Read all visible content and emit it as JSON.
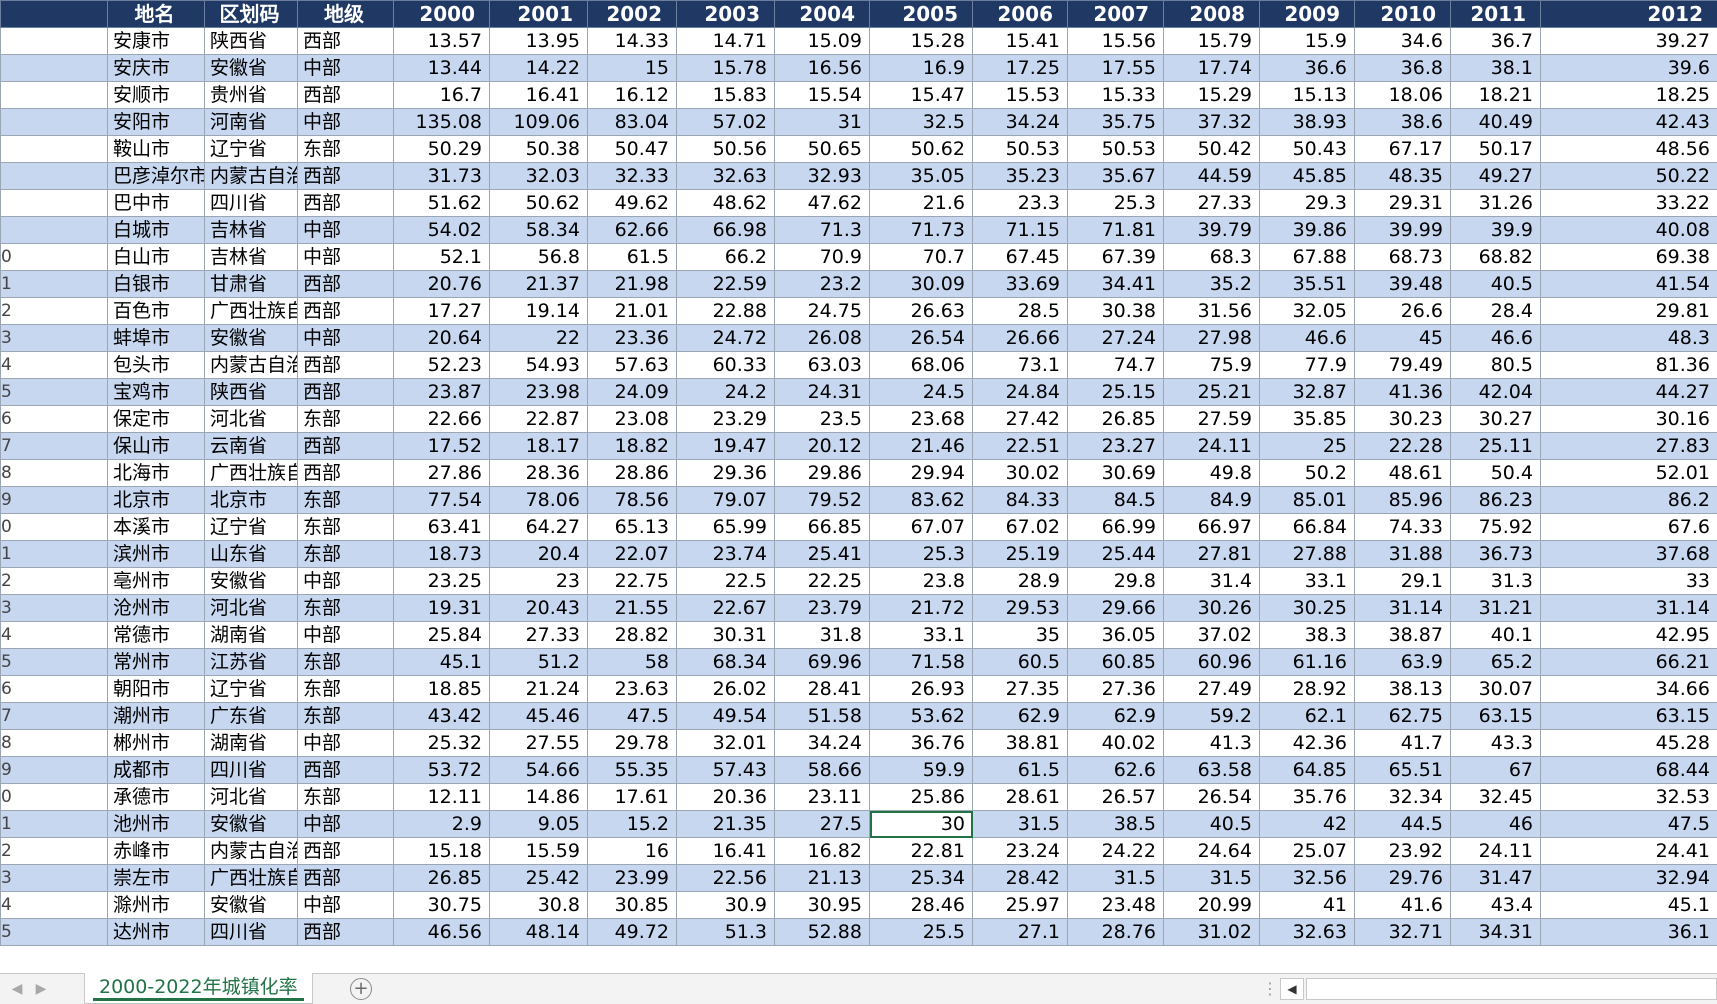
{
  "sheet": {
    "headers": [
      "地名",
      "区划码",
      "地级",
      "2000",
      "2001",
      "2002",
      "2003",
      "2004",
      "2005",
      "2006",
      "2007",
      "2008",
      "2009",
      "2010",
      "2011",
      "2012"
    ],
    "row_numbers": [
      "",
      "",
      "",
      "",
      "",
      "",
      "",
      "",
      "0",
      "1",
      "2",
      "3",
      "4",
      "5",
      "6",
      "7",
      "8",
      "9",
      "0",
      "1",
      "2",
      "3",
      "4",
      "5",
      "6",
      "7",
      "8",
      "9",
      "0",
      "1",
      "2",
      "3",
      "4",
      "5"
    ],
    "rows": [
      [
        "安康市",
        "陕西省",
        "西部",
        "13.57",
        "13.95",
        "14.33",
        "14.71",
        "15.09",
        "15.28",
        "15.41",
        "15.56",
        "15.79",
        "15.9",
        "34.6",
        "36.7",
        "39.27"
      ],
      [
        "安庆市",
        "安徽省",
        "中部",
        "13.44",
        "14.22",
        "15",
        "15.78",
        "16.56",
        "16.9",
        "17.25",
        "17.55",
        "17.74",
        "36.6",
        "36.8",
        "38.1",
        "39.6"
      ],
      [
        "安顺市",
        "贵州省",
        "西部",
        "16.7",
        "16.41",
        "16.12",
        "15.83",
        "15.54",
        "15.47",
        "15.53",
        "15.33",
        "15.29",
        "15.13",
        "18.06",
        "18.21",
        "18.25"
      ],
      [
        "安阳市",
        "河南省",
        "中部",
        "135.08",
        "109.06",
        "83.04",
        "57.02",
        "31",
        "32.5",
        "34.24",
        "35.75",
        "37.32",
        "38.93",
        "38.6",
        "40.49",
        "42.43"
      ],
      [
        "鞍山市",
        "辽宁省",
        "东部",
        "50.29",
        "50.38",
        "50.47",
        "50.56",
        "50.65",
        "50.62",
        "50.53",
        "50.53",
        "50.42",
        "50.43",
        "67.17",
        "50.17",
        "48.56"
      ],
      [
        "巴彦淖尔市",
        "内蒙古自治区",
        "西部",
        "31.73",
        "32.03",
        "32.33",
        "32.63",
        "32.93",
        "35.05",
        "35.23",
        "35.67",
        "44.59",
        "45.85",
        "48.35",
        "49.27",
        "50.22"
      ],
      [
        "巴中市",
        "四川省",
        "西部",
        "51.62",
        "50.62",
        "49.62",
        "48.62",
        "47.62",
        "21.6",
        "23.3",
        "25.3",
        "27.33",
        "29.3",
        "29.31",
        "31.26",
        "33.22"
      ],
      [
        "白城市",
        "吉林省",
        "中部",
        "54.02",
        "58.34",
        "62.66",
        "66.98",
        "71.3",
        "71.73",
        "71.15",
        "71.81",
        "39.79",
        "39.86",
        "39.99",
        "39.9",
        "40.08"
      ],
      [
        "白山市",
        "吉林省",
        "中部",
        "52.1",
        "56.8",
        "61.5",
        "66.2",
        "70.9",
        "70.7",
        "67.45",
        "67.39",
        "68.3",
        "67.88",
        "68.73",
        "68.82",
        "69.38"
      ],
      [
        "白银市",
        "甘肃省",
        "西部",
        "20.76",
        "21.37",
        "21.98",
        "22.59",
        "23.2",
        "30.09",
        "33.69",
        "34.41",
        "35.2",
        "35.51",
        "39.48",
        "40.5",
        "41.54"
      ],
      [
        "百色市",
        "广西壮族自治区",
        "西部",
        "17.27",
        "19.14",
        "21.01",
        "22.88",
        "24.75",
        "26.63",
        "28.5",
        "30.38",
        "31.56",
        "32.05",
        "26.6",
        "28.4",
        "29.81"
      ],
      [
        "蚌埠市",
        "安徽省",
        "中部",
        "20.64",
        "22",
        "23.36",
        "24.72",
        "26.08",
        "26.54",
        "26.66",
        "27.24",
        "27.98",
        "46.6",
        "45",
        "46.6",
        "48.3"
      ],
      [
        "包头市",
        "内蒙古自治区",
        "西部",
        "52.23",
        "54.93",
        "57.63",
        "60.33",
        "63.03",
        "68.06",
        "73.1",
        "74.7",
        "75.9",
        "77.9",
        "79.49",
        "80.5",
        "81.36"
      ],
      [
        "宝鸡市",
        "陕西省",
        "西部",
        "23.87",
        "23.98",
        "24.09",
        "24.2",
        "24.31",
        "24.5",
        "24.84",
        "25.15",
        "25.21",
        "32.87",
        "41.36",
        "42.04",
        "44.27"
      ],
      [
        "保定市",
        "河北省",
        "东部",
        "22.66",
        "22.87",
        "23.08",
        "23.29",
        "23.5",
        "23.68",
        "27.42",
        "26.85",
        "27.59",
        "35.85",
        "30.23",
        "30.27",
        "30.16"
      ],
      [
        "保山市",
        "云南省",
        "西部",
        "17.52",
        "18.17",
        "18.82",
        "19.47",
        "20.12",
        "21.46",
        "22.51",
        "23.27",
        "24.11",
        "25",
        "22.28",
        "25.11",
        "27.83"
      ],
      [
        "北海市",
        "广西壮族自治区",
        "西部",
        "27.86",
        "28.36",
        "28.86",
        "29.36",
        "29.86",
        "29.94",
        "30.02",
        "30.69",
        "49.8",
        "50.2",
        "48.61",
        "50.4",
        "52.01"
      ],
      [
        "北京市",
        "北京市",
        "东部",
        "77.54",
        "78.06",
        "78.56",
        "79.07",
        "79.52",
        "83.62",
        "84.33",
        "84.5",
        "84.9",
        "85.01",
        "85.96",
        "86.23",
        "86.2"
      ],
      [
        "本溪市",
        "辽宁省",
        "东部",
        "63.41",
        "64.27",
        "65.13",
        "65.99",
        "66.85",
        "67.07",
        "67.02",
        "66.99",
        "66.97",
        "66.84",
        "74.33",
        "75.92",
        "67.6"
      ],
      [
        "滨州市",
        "山东省",
        "东部",
        "18.73",
        "20.4",
        "22.07",
        "23.74",
        "25.41",
        "25.3",
        "25.19",
        "25.44",
        "27.81",
        "27.88",
        "31.88",
        "36.73",
        "37.68"
      ],
      [
        "亳州市",
        "安徽省",
        "中部",
        "23.25",
        "23",
        "22.75",
        "22.5",
        "22.25",
        "23.8",
        "28.9",
        "29.8",
        "31.4",
        "33.1",
        "29.1",
        "31.3",
        "33"
      ],
      [
        "沧州市",
        "河北省",
        "东部",
        "19.31",
        "20.43",
        "21.55",
        "22.67",
        "23.79",
        "21.72",
        "29.53",
        "29.66",
        "30.26",
        "30.25",
        "31.14",
        "31.21",
        "31.14"
      ],
      [
        "常德市",
        "湖南省",
        "中部",
        "25.84",
        "27.33",
        "28.82",
        "30.31",
        "31.8",
        "33.1",
        "35",
        "36.05",
        "37.02",
        "38.3",
        "38.87",
        "40.1",
        "42.95"
      ],
      [
        "常州市",
        "江苏省",
        "东部",
        "45.1",
        "51.2",
        "58",
        "68.34",
        "69.96",
        "71.58",
        "60.5",
        "60.85",
        "60.96",
        "61.16",
        "63.9",
        "65.2",
        "66.21"
      ],
      [
        "朝阳市",
        "辽宁省",
        "东部",
        "18.85",
        "21.24",
        "23.63",
        "26.02",
        "28.41",
        "26.93",
        "27.35",
        "27.36",
        "27.49",
        "28.92",
        "38.13",
        "30.07",
        "34.66"
      ],
      [
        "潮州市",
        "广东省",
        "东部",
        "43.42",
        "45.46",
        "47.5",
        "49.54",
        "51.58",
        "53.62",
        "62.9",
        "62.9",
        "59.2",
        "62.1",
        "62.75",
        "63.15",
        "63.15"
      ],
      [
        "郴州市",
        "湖南省",
        "中部",
        "25.32",
        "27.55",
        "29.78",
        "32.01",
        "34.24",
        "36.76",
        "38.81",
        "40.02",
        "41.3",
        "42.36",
        "41.7",
        "43.3",
        "45.28"
      ],
      [
        "成都市",
        "四川省",
        "西部",
        "53.72",
        "54.66",
        "55.35",
        "57.43",
        "58.66",
        "59.9",
        "61.5",
        "62.6",
        "63.58",
        "64.85",
        "65.51",
        "67",
        "68.44"
      ],
      [
        "承德市",
        "河北省",
        "东部",
        "12.11",
        "14.86",
        "17.61",
        "20.36",
        "23.11",
        "25.86",
        "28.61",
        "26.57",
        "26.54",
        "35.76",
        "32.34",
        "32.45",
        "32.53"
      ],
      [
        "池州市",
        "安徽省",
        "中部",
        "2.9",
        "9.05",
        "15.2",
        "21.35",
        "27.5",
        "30",
        "31.5",
        "38.5",
        "40.5",
        "42",
        "44.5",
        "46",
        "47.5"
      ],
      [
        "赤峰市",
        "内蒙古自治区",
        "西部",
        "15.18",
        "15.59",
        "16",
        "16.41",
        "16.82",
        "22.81",
        "23.24",
        "24.22",
        "24.64",
        "25.07",
        "23.92",
        "24.11",
        "24.41"
      ],
      [
        "崇左市",
        "广西壮族自治区",
        "西部",
        "26.85",
        "25.42",
        "23.99",
        "22.56",
        "21.13",
        "25.34",
        "28.42",
        "31.5",
        "31.5",
        "32.56",
        "29.76",
        "31.47",
        "32.94"
      ],
      [
        "滁州市",
        "安徽省",
        "中部",
        "30.75",
        "30.8",
        "30.85",
        "30.9",
        "30.95",
        "28.46",
        "25.97",
        "23.48",
        "20.99",
        "41",
        "41.6",
        "43.4",
        "45.1"
      ],
      [
        "达州市",
        "四川省",
        "西部",
        "46.56",
        "48.14",
        "49.72",
        "51.3",
        "52.88",
        "25.5",
        "27.1",
        "28.76",
        "31.02",
        "32.63",
        "32.71",
        "34.31",
        "36.1"
      ]
    ],
    "active_row": 29,
    "active_col": 8
  },
  "tabs": {
    "sheet_name": "2000-2022年城镇化率",
    "first_icon": "first-sheet-icon",
    "prev_icon": "prev-sheet-icon",
    "add_icon": "add-sheet-icon"
  },
  "scrollbar": {
    "left_arrow": "◀",
    "splitter": "⋮"
  }
}
